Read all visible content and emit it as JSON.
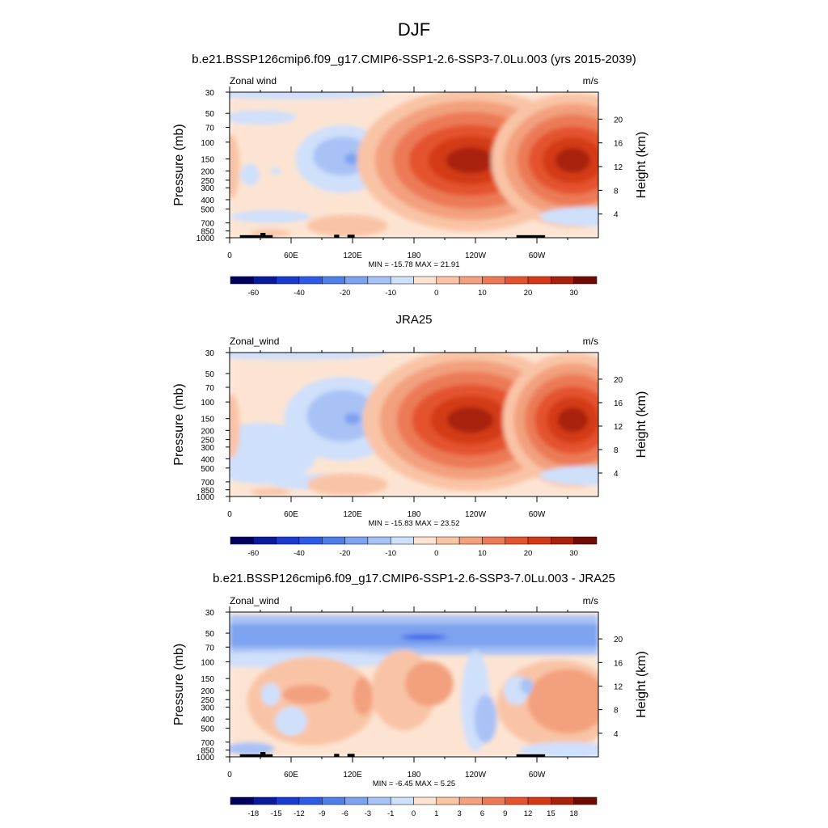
{
  "figure": {
    "title": "DJF"
  },
  "colors": {
    "panel1_palette": [
      "#00005f",
      "#0a1a9a",
      "#1a3ad0",
      "#2f5ae8",
      "#4f7ee8",
      "#7da2ef",
      "#a8c2f5",
      "#cfe0fb",
      "#fde4d2",
      "#f9c4a6",
      "#f3a07e",
      "#ec7a57",
      "#e4532f",
      "#d33a17",
      "#a8210c",
      "#6e0b04"
    ],
    "panel3_palette": [
      "#00005f",
      "#0a1a9a",
      "#1a3ad0",
      "#2f5ae8",
      "#4f7ee8",
      "#7da2ef",
      "#a8c2f5",
      "#cfe0fb",
      "#fde4d2",
      "#f9c4a6",
      "#f3a07e",
      "#ec7a57",
      "#e4532f",
      "#d33a17",
      "#a8210c",
      "#6e0b04"
    ],
    "topography": "#000000"
  },
  "chart_data": [
    {
      "type": "heatmap",
      "title": "b.e21.BSSP126cmip6.f09_g17.CMIP6-SSP1-2.6-SSP3-7.0Lu.003 (yrs 2015-2039)",
      "left_label": "Zonal wind",
      "units": "m/s",
      "ylabel": "Pressure (mb)",
      "ylabel_right": "Height (km)",
      "x_ticks": [
        "0",
        "60E",
        "120E",
        "180",
        "120W",
        "60W"
      ],
      "y_ticks": [
        "30",
        "50",
        "70",
        "100",
        "150",
        "200",
        "250",
        "300",
        "400",
        "500",
        "700",
        "850",
        "1000"
      ],
      "y_right_ticks": [
        "20",
        "16",
        "12",
        "8",
        "4"
      ],
      "min_max": "MIN = -15.78  MAX =  21.91",
      "levels": [
        "-60",
        "-40",
        "-20",
        "-10",
        "0",
        "10",
        "20",
        "30"
      ],
      "colorbar_levels": [
        -70,
        -60,
        -50,
        -40,
        -30,
        -20,
        -15,
        -10,
        -5,
        0,
        5,
        10,
        15,
        20,
        25,
        30
      ],
      "min": -15.78,
      "max": 21.91,
      "features": [
        {
          "lon": 110,
          "pressure": 120,
          "value": -10
        },
        {
          "lon": 235,
          "pressure": 150,
          "value": 21.9
        },
        {
          "lon": 335,
          "pressure": 150,
          "value": 18
        }
      ]
    },
    {
      "type": "heatmap",
      "title": "JRA25",
      "left_label": "Zonal_wind",
      "units": "m/s",
      "ylabel": "Pressure (mb)",
      "ylabel_right": "Height (km)",
      "x_ticks": [
        "0",
        "60E",
        "120E",
        "180",
        "120W",
        "60W"
      ],
      "y_ticks": [
        "30",
        "50",
        "70",
        "100",
        "150",
        "200",
        "250",
        "300",
        "400",
        "500",
        "700",
        "850",
        "1000"
      ],
      "y_right_ticks": [
        "20",
        "16",
        "12",
        "8",
        "4"
      ],
      "min_max": "MIN = -15.83  MAX =  23.52",
      "levels": [
        "-60",
        "-40",
        "-20",
        "-10",
        "0",
        "10",
        "20",
        "30"
      ],
      "colorbar_levels": [
        -70,
        -60,
        -50,
        -40,
        -30,
        -20,
        -15,
        -10,
        -5,
        0,
        5,
        10,
        15,
        20,
        25,
        30
      ],
      "min": -15.83,
      "max": 23.52,
      "features": [
        {
          "lon": 115,
          "pressure": 150,
          "value": -12
        },
        {
          "lon": 235,
          "pressure": 150,
          "value": 23.5
        },
        {
          "lon": 335,
          "pressure": 150,
          "value": 16
        }
      ]
    },
    {
      "type": "heatmap",
      "title": "b.e21.BSSP126cmip6.f09_g17.CMIP6-SSP1-2.6-SSP3-7.0Lu.003 - JRA25",
      "left_label": "Zonal_wind",
      "units": "m/s",
      "ylabel": "Pressure (mb)",
      "ylabel_right": "Height (km)",
      "x_ticks": [
        "0",
        "60E",
        "120E",
        "180",
        "120W",
        "60W"
      ],
      "y_ticks": [
        "30",
        "50",
        "70",
        "100",
        "150",
        "200",
        "250",
        "300",
        "400",
        "500",
        "700",
        "850",
        "1000"
      ],
      "y_right_ticks": [
        "20",
        "16",
        "12",
        "8",
        "4"
      ],
      "min_max": "MIN =  -6.45  MAX =   5.25",
      "levels": [
        "-18",
        "-15",
        "-12",
        "-9",
        "-6",
        "-3",
        "-1",
        "0",
        "1",
        "3",
        "6",
        "9",
        "12",
        "15",
        "18"
      ],
      "colorbar_levels": [
        -21,
        -18,
        -15,
        -12,
        -9,
        -6,
        -3,
        -1,
        0,
        1,
        3,
        6,
        9,
        12,
        15,
        18
      ],
      "min": -6.45,
      "max": 5.25,
      "features": [
        {
          "lon": 190,
          "pressure": 55,
          "value": -6.45
        },
        {
          "lon": 320,
          "pressure": 200,
          "value": 5.25
        }
      ]
    }
  ]
}
